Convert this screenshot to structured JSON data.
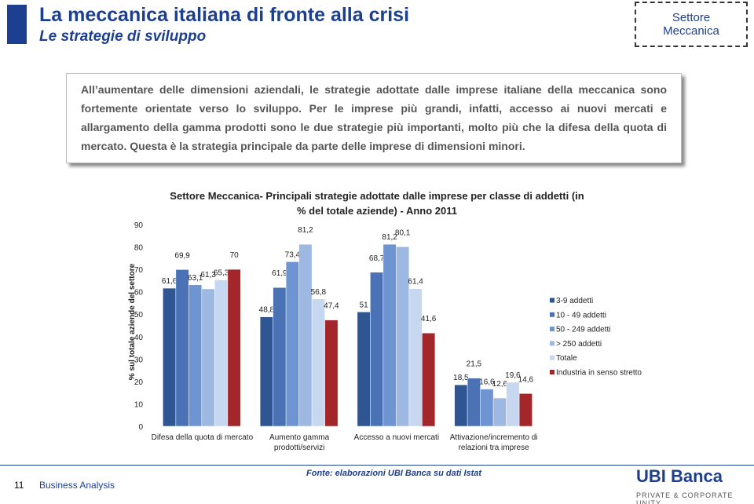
{
  "header": {
    "title": "La meccanica italiana di fronte alla crisi",
    "subtitle": "Le strategie di sviluppo",
    "badge": "Settore Meccanica"
  },
  "text": "All’aumentare delle dimensioni aziendali, le strategie adottate dalle imprese italiane della meccanica sono fortemente orientate verso lo sviluppo. Per le imprese più grandi, infatti, accesso ai nuovi mercati e allargamento della gamma prodotti sono le due strategie più importanti, molto più che la difesa della quota di mercato. Questa è la strategia principale da parte delle imprese di dimensioni minori.",
  "chart_data": {
    "type": "bar",
    "title": "Settore Meccanica- Principali strategie adottate dalle imprese per classe di addetti (in % del totale aziende) - Anno 2011",
    "y_label": "% sul totale aziende del settore",
    "categories": [
      "Difesa della quota di mercato",
      "Aumento gamma prodotti/servizi",
      "Accesso a nuovi mercati",
      "Attivazione/incremento di relazioni tra imprese"
    ],
    "series": [
      {
        "name": "3-9 addetti",
        "color": "#2f5592",
        "values": [
          61.6,
          48.8,
          51,
          18.5
        ],
        "value_labels": [
          "61,6",
          "48,8",
          "51",
          "18,5"
        ]
      },
      {
        "name": "10 - 49 addetti",
        "color": "#4a72b5",
        "values": [
          69.9,
          61.9,
          68.7,
          21.5
        ],
        "value_labels": [
          "69,9",
          "61,9",
          "68,7",
          "21,5"
        ]
      },
      {
        "name": "50 - 249 addetti",
        "color": "#6e95d1",
        "values": [
          63.1,
          73.4,
          81.2,
          16.6
        ],
        "value_labels": [
          "63,1",
          "73,4",
          "81,2",
          "16,6"
        ]
      },
      {
        "name": "> 250 addetti",
        "color": "#9db9e2",
        "values": [
          61.3,
          81.2,
          80.1,
          12.6
        ],
        "value_labels": [
          "61,3",
          "81,2",
          "80,1",
          "12,6"
        ]
      },
      {
        "name": "Totale",
        "color": "#c6d7ef",
        "values": [
          65.3,
          56.8,
          61.4,
          19.6
        ],
        "value_labels": [
          "65,3",
          "56,8",
          "61,4",
          "19,6"
        ]
      },
      {
        "name": "Industria in senso stretto",
        "color": "#a3262a",
        "values": [
          70,
          47.4,
          41.6,
          14.6
        ],
        "value_labels": [
          "70",
          "47,4",
          "41,6",
          "14,6"
        ]
      }
    ],
    "ylim": [
      0,
      90
    ],
    "yticks": [
      0,
      10,
      20,
      30,
      40,
      50,
      60,
      70,
      80,
      90
    ],
    "grid": false
  },
  "footer": {
    "page": "11",
    "section": "Business Analysis",
    "source": "Fonte: elaborazioni UBI Banca su dati Istat",
    "logo": "UBI Banca",
    "logo_sub": "PRIVATE & CORPORATE UNITY"
  }
}
